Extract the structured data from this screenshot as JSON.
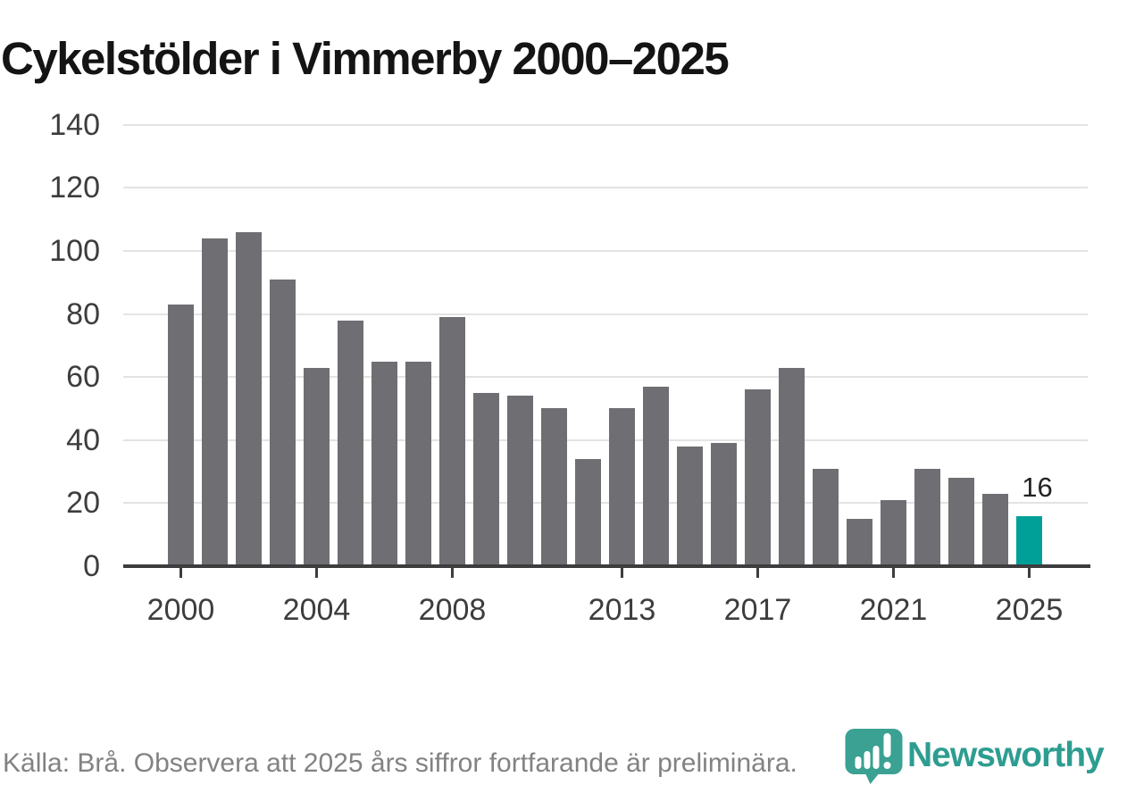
{
  "title": "Cykelstölder i Vimmerby 2000–2025",
  "chart_data": {
    "type": "bar",
    "title": "Cykelstölder i Vimmerby 2000–2025",
    "categories": [
      2000,
      2001,
      2002,
      2003,
      2004,
      2005,
      2006,
      2007,
      2008,
      2009,
      2010,
      2011,
      2012,
      2013,
      2014,
      2015,
      2016,
      2017,
      2018,
      2019,
      2020,
      2021,
      2022,
      2023,
      2024,
      2025
    ],
    "values": [
      83,
      104,
      106,
      91,
      63,
      78,
      65,
      65,
      79,
      55,
      54,
      50,
      34,
      50,
      57,
      38,
      39,
      56,
      63,
      31,
      15,
      21,
      31,
      28,
      23,
      16
    ],
    "xlabel": "",
    "ylabel": "",
    "ylim": [
      0,
      140
    ],
    "y_ticks": [
      0,
      20,
      40,
      60,
      80,
      100,
      120,
      140
    ],
    "x_tick_labels": [
      "2000",
      "2004",
      "2008",
      "2013",
      "2017",
      "2021",
      "2025"
    ],
    "x_tick_years": [
      2000,
      2004,
      2008,
      2013,
      2017,
      2021,
      2025
    ],
    "grid": "horizontal",
    "legend": "none",
    "bar_color": "#6e6e73",
    "highlight_color": "#00a099",
    "highlight_index": 25,
    "highlight_value_label": "16"
  },
  "footer": {
    "source_text": "Källa: Brå. Observera att 2025 års siffror fortfarande är preliminära.",
    "brand": "Newsworthy"
  },
  "colors": {
    "background": "#ffffff",
    "title_text": "#141414",
    "axis_text": "#3d3d3d",
    "axis_line": "#3d3d3d",
    "gridline": "#e3e3e3",
    "bar": "#6e6e73",
    "highlight_bar": "#00a099",
    "footer_text": "#828282",
    "logo_teal": "#3aa193",
    "logo_word_teal": "#2e9d91"
  }
}
